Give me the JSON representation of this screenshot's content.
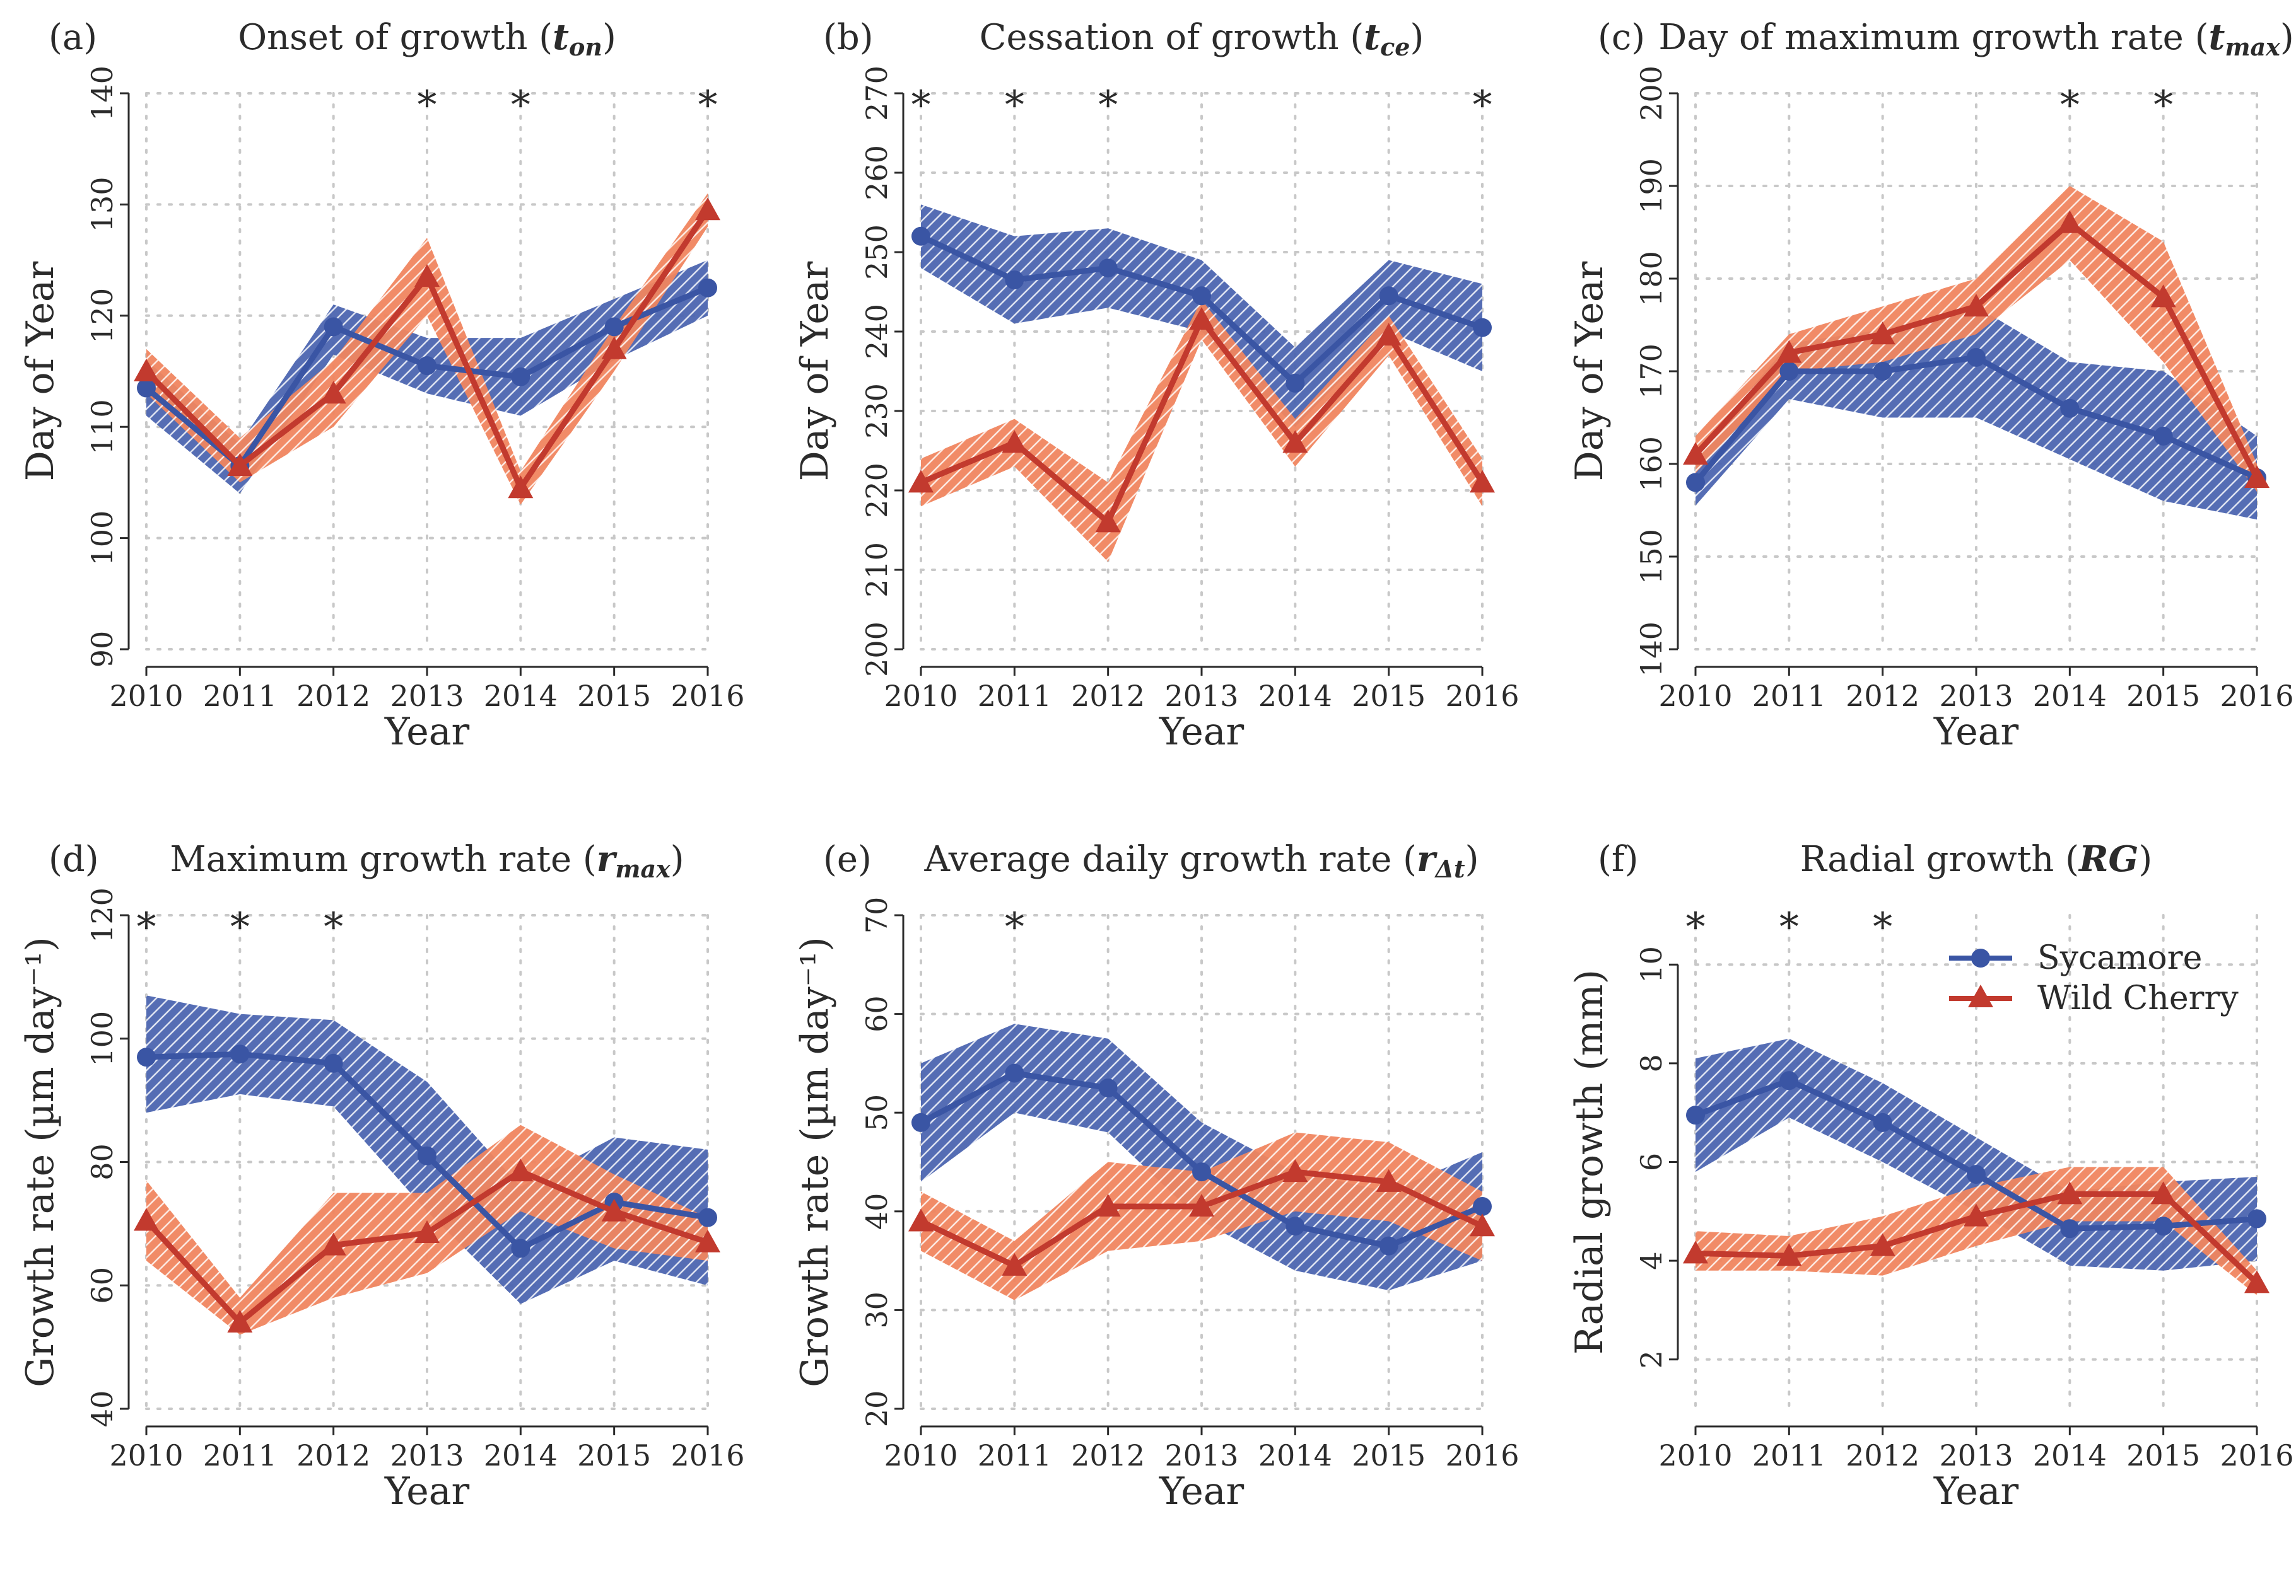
{
  "legend": {
    "items": [
      {
        "label": "Sycamore",
        "color": "#3a55a4",
        "marker": "circle"
      },
      {
        "label": "Wild Cherry",
        "color": "#c23a2e",
        "marker": "triangle"
      }
    ]
  },
  "chart_data": [
    {
      "type": "line",
      "letter": "(a)",
      "title": "Onset of growth (",
      "title_var": "t",
      "title_sub": "on",
      "title_close": ")",
      "xlabel": "Year",
      "ylabel": "Day of Year",
      "ylim": [
        90,
        140
      ],
      "yticks": [
        90,
        100,
        110,
        120,
        130,
        140
      ],
      "yticklabels": [
        "90",
        "100",
        "110",
        "120",
        "130",
        "140"
      ],
      "x": [
        2010,
        2011,
        2012,
        2013,
        2014,
        2015,
        2016
      ],
      "xticklabels": [
        "2010",
        "2011",
        "2012",
        "2013",
        "2014",
        "2015",
        "2016"
      ],
      "significant_years": [
        2013,
        2014,
        2016
      ],
      "series": [
        {
          "name": "Sycamore",
          "values": [
            113.5,
            106.5,
            119,
            115.5,
            114.5,
            119,
            122.5
          ],
          "lower": [
            111,
            104,
            116.5,
            113,
            111,
            116,
            120
          ],
          "upper": [
            116,
            108.5,
            121,
            118,
            118,
            121.5,
            125
          ]
        },
        {
          "name": "Wild Cherry",
          "values": [
            115,
            106.5,
            113,
            123.5,
            104.5,
            117,
            129.5
          ],
          "lower": [
            113,
            105,
            110,
            120,
            103,
            115,
            128
          ],
          "upper": [
            117,
            109,
            116,
            127,
            106,
            119,
            131
          ]
        }
      ]
    },
    {
      "type": "line",
      "letter": "(b)",
      "title": "Cessation of growth (",
      "title_var": "t",
      "title_sub": "ce",
      "title_close": ")",
      "xlabel": "Year",
      "ylabel": "Day of Year",
      "ylim": [
        200,
        270
      ],
      "yticks": [
        200,
        210,
        220,
        230,
        240,
        250,
        260,
        270
      ],
      "yticklabels": [
        "200",
        "210",
        "220",
        "230",
        "240",
        "250",
        "260",
        "270"
      ],
      "x": [
        2010,
        2011,
        2012,
        2013,
        2014,
        2015,
        2016
      ],
      "xticklabels": [
        "2010",
        "2011",
        "2012",
        "2013",
        "2014",
        "2015",
        "2016"
      ],
      "significant_years": [
        2010,
        2011,
        2012,
        2016
      ],
      "series": [
        {
          "name": "Sycamore",
          "values": [
            252,
            246.5,
            248,
            244.5,
            233.5,
            244.5,
            240.5
          ],
          "lower": [
            248,
            241,
            243,
            240,
            228,
            240,
            235
          ],
          "upper": [
            256,
            252,
            253,
            249,
            238,
            249,
            246
          ]
        },
        {
          "name": "Wild Cherry",
          "values": [
            221,
            226,
            216,
            241.5,
            226,
            239.5,
            221
          ],
          "lower": [
            218,
            223,
            211,
            239,
            223,
            237,
            218
          ],
          "upper": [
            224,
            229,
            221,
            244,
            229,
            242,
            224
          ]
        }
      ]
    },
    {
      "type": "line",
      "letter": "(c)",
      "title": "Day of maximum growth rate (",
      "title_var": "t",
      "title_sub": "max",
      "title_close": ")",
      "xlabel": "Year",
      "ylabel": "Day of Year",
      "ylim": [
        140,
        200
      ],
      "yticks": [
        140,
        150,
        160,
        170,
        180,
        190,
        200
      ],
      "yticklabels": [
        "140",
        "150",
        "160",
        "170",
        "180",
        "190",
        "200"
      ],
      "x": [
        2010,
        2011,
        2012,
        2013,
        2014,
        2015,
        2016
      ],
      "xticklabels": [
        "2010",
        "2011",
        "2012",
        "2013",
        "2014",
        "2015",
        "2016"
      ],
      "significant_years": [
        2014,
        2015
      ],
      "series": [
        {
          "name": "Sycamore",
          "values": [
            158,
            170,
            170,
            171.5,
            166,
            163,
            158.5
          ],
          "lower": [
            155.5,
            167,
            165,
            165,
            160.5,
            156,
            154
          ],
          "upper": [
            161,
            173,
            174.5,
            177,
            171,
            170,
            163
          ]
        },
        {
          "name": "Wild Cherry",
          "values": [
            161,
            172,
            174,
            177,
            186,
            178,
            158.5
          ],
          "lower": [
            159,
            170,
            171,
            174,
            182,
            171,
            157
          ],
          "upper": [
            163,
            174,
            177,
            180,
            190,
            184,
            160
          ]
        }
      ]
    },
    {
      "type": "line",
      "letter": "(d)",
      "title": "Maximum growth rate (",
      "title_var": "r",
      "title_sub": "max",
      "title_close": ")",
      "xlabel": "Year",
      "ylabel": "Growth rate (µm day⁻¹)",
      "ylim": [
        40,
        120
      ],
      "yticks": [
        40,
        60,
        80,
        100,
        120
      ],
      "yticklabels": [
        "40",
        "60",
        "80",
        "100",
        "120"
      ],
      "x": [
        2010,
        2011,
        2012,
        2013,
        2014,
        2015,
        2016
      ],
      "xticklabels": [
        "2010",
        "2011",
        "2012",
        "2013",
        "2014",
        "2015",
        "2016"
      ],
      "significant_years": [
        2010,
        2011,
        2012
      ],
      "series": [
        {
          "name": "Sycamore",
          "values": [
            97,
            97.5,
            96,
            81,
            66,
            73.5,
            71
          ],
          "lower": [
            88,
            91,
            89,
            72,
            57,
            64,
            60
          ],
          "upper": [
            107,
            104,
            103,
            93,
            76,
            84,
            82
          ]
        },
        {
          "name": "Wild Cherry",
          "values": [
            70.5,
            54,
            66.5,
            68.5,
            78.5,
            72,
            67
          ],
          "lower": [
            64,
            52,
            58,
            62,
            72,
            66,
            64
          ],
          "upper": [
            77,
            58,
            75,
            75,
            86,
            78,
            71
          ]
        }
      ]
    },
    {
      "type": "line",
      "letter": "(e)",
      "title": "Average daily growth rate (",
      "title_var": "r",
      "title_sub": "Δt",
      "title_close": ")",
      "xlabel": "Year",
      "ylabel": "Growth rate (µm day⁻¹)",
      "ylim": [
        20,
        70
      ],
      "yticks": [
        20,
        30,
        40,
        50,
        60,
        70
      ],
      "yticklabels": [
        "20",
        "30",
        "40",
        "50",
        "60",
        "70"
      ],
      "x": [
        2010,
        2011,
        2012,
        2013,
        2014,
        2015,
        2016
      ],
      "xticklabels": [
        "2010",
        "2011",
        "2012",
        "2013",
        "2014",
        "2015",
        "2016"
      ],
      "significant_years": [
        2011
      ],
      "series": [
        {
          "name": "Sycamore",
          "values": [
            49,
            54,
            52.5,
            44,
            38.5,
            36.5,
            40.5
          ],
          "lower": [
            43,
            50,
            48,
            39,
            34,
            32,
            35
          ],
          "upper": [
            55,
            59,
            57.5,
            49,
            44,
            42,
            46
          ]
        },
        {
          "name": "Wild Cherry",
          "values": [
            39,
            34.5,
            40.5,
            40.5,
            44,
            43,
            38.5
          ],
          "lower": [
            36,
            31,
            36,
            37,
            40,
            39,
            35
          ],
          "upper": [
            42,
            37,
            45,
            44,
            48,
            47,
            42
          ]
        }
      ]
    },
    {
      "type": "line",
      "letter": "(f)",
      "title": "Radial growth (",
      "title_var": "RG",
      "title_sub": "",
      "title_close": ")",
      "xlabel": "Year",
      "ylabel": "Radial growth (mm)",
      "ylim": [
        1,
        11
      ],
      "yticks": [
        2,
        4,
        6,
        8,
        10
      ],
      "yticklabels": [
        "2",
        "4",
        "6",
        "8",
        "10"
      ],
      "x": [
        2010,
        2011,
        2012,
        2013,
        2014,
        2015,
        2016
      ],
      "xticklabels": [
        "2010",
        "2011",
        "2012",
        "2013",
        "2014",
        "2015",
        "2016"
      ],
      "significant_years": [
        2010,
        2011,
        2012
      ],
      "series": [
        {
          "name": "Sycamore",
          "values": [
            6.95,
            7.65,
            6.8,
            5.75,
            4.65,
            4.7,
            4.85
          ],
          "lower": [
            5.8,
            6.9,
            6.0,
            5.0,
            3.9,
            3.8,
            4.0
          ],
          "upper": [
            8.1,
            8.5,
            7.6,
            6.5,
            5.4,
            5.6,
            5.7
          ]
        },
        {
          "name": "Wild Cherry",
          "values": [
            4.15,
            4.1,
            4.3,
            4.9,
            5.35,
            5.35,
            3.55
          ],
          "lower": [
            3.8,
            3.8,
            3.7,
            4.3,
            4.8,
            4.8,
            3.3
          ],
          "upper": [
            4.6,
            4.5,
            4.9,
            5.5,
            5.9,
            5.9,
            3.8
          ]
        }
      ]
    }
  ]
}
